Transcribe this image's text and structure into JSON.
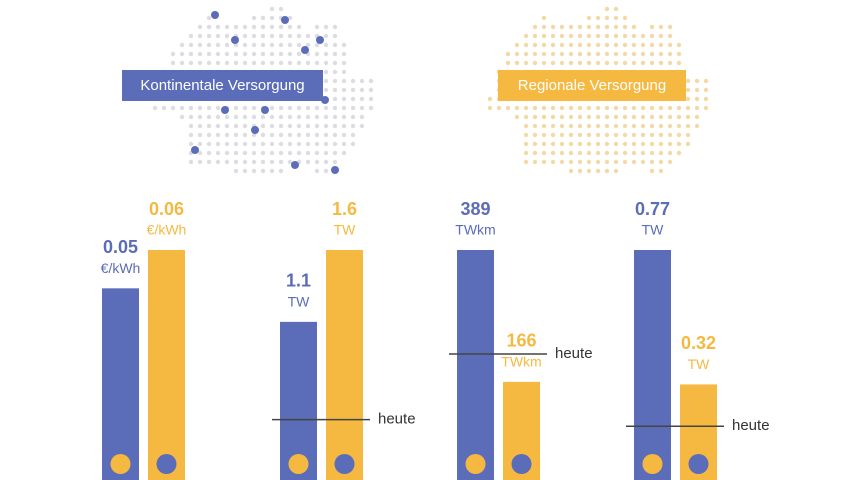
{
  "legend": [
    {
      "label": "Kontinentale Versorgung",
      "color": "#5b6cb8"
    },
    {
      "label": "Regionale Versorgung",
      "color": "#f5b942"
    }
  ],
  "chart_data": [
    {
      "type": "bar",
      "values": [
        0.05,
        0.06
      ],
      "units": [
        "€/kWh",
        "€/kWh"
      ],
      "ylim": [
        0,
        0.06
      ]
    },
    {
      "type": "bar",
      "values": [
        1.1,
        1.6
      ],
      "units": [
        "TW",
        "TW"
      ],
      "ylim": [
        0,
        1.6
      ],
      "reference": {
        "label": "heute",
        "value": 0.42
      }
    },
    {
      "type": "bar",
      "values": [
        389,
        166
      ],
      "units": [
        "TWkm",
        "TWkm"
      ],
      "ylim": [
        0,
        389
      ],
      "reference": {
        "label": "heute",
        "value": 213
      }
    },
    {
      "type": "bar",
      "values": [
        0.77,
        0.32
      ],
      "units": [
        "TW",
        "TW"
      ],
      "ylim": [
        0,
        0.77
      ],
      "reference": {
        "label": "heute",
        "value": 0.18
      }
    }
  ]
}
